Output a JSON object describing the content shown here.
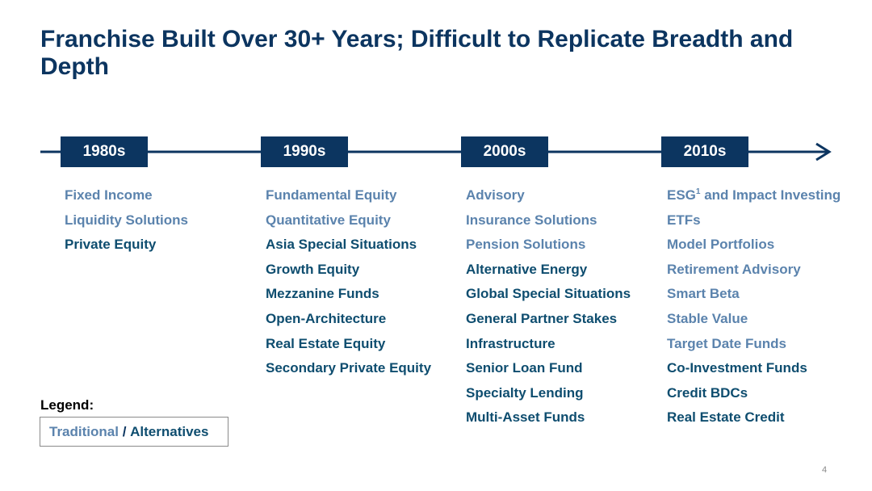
{
  "title": "Franchise Built Over 30+ Years; Difficult to Replicate Breadth and Depth",
  "colors": {
    "primary": "#0c3560",
    "traditional": "#5b83ad",
    "alternatives": "#0e4d6f",
    "legend_border": "#8a8a8a"
  },
  "timeline": {
    "decades": [
      {
        "label": "1980s",
        "items": [
          {
            "text": "Fixed Income",
            "category": "traditional"
          },
          {
            "text": "Liquidity Solutions",
            "category": "traditional"
          },
          {
            "text": "Private Equity",
            "category": "alternatives"
          }
        ]
      },
      {
        "label": "1990s",
        "items": [
          {
            "text": "Fundamental Equity",
            "category": "traditional"
          },
          {
            "text": "Quantitative Equity",
            "category": "traditional"
          },
          {
            "text": "Asia Special Situations",
            "category": "alternatives"
          },
          {
            "text": "Growth Equity",
            "category": "alternatives"
          },
          {
            "text": "Mezzanine Funds",
            "category": "alternatives"
          },
          {
            "text": "Open-Architecture",
            "category": "alternatives"
          },
          {
            "text": "Real Estate Equity",
            "category": "alternatives"
          },
          {
            "text": "Secondary Private Equity",
            "category": "alternatives"
          }
        ]
      },
      {
        "label": "2000s",
        "items": [
          {
            "text": "Advisory",
            "category": "traditional"
          },
          {
            "text": "Insurance Solutions",
            "category": "traditional"
          },
          {
            "text": "Pension Solutions",
            "category": "traditional"
          },
          {
            "text": "Alternative Energy",
            "category": "alternatives"
          },
          {
            "text": "Global Special Situations",
            "category": "alternatives"
          },
          {
            "text": "General Partner Stakes",
            "category": "alternatives"
          },
          {
            "text": "Infrastructure",
            "category": "alternatives"
          },
          {
            "text": "Senior Loan Fund",
            "category": "alternatives"
          },
          {
            "text": "Specialty Lending",
            "category": "alternatives"
          },
          {
            "text": "Multi-Asset Funds",
            "category": "alternatives"
          }
        ]
      },
      {
        "label": "2010s",
        "items": [
          {
            "text": "ESG",
            "sup": "1",
            "text_after": " and Impact Investing",
            "category": "traditional"
          },
          {
            "text": "ETFs",
            "category": "traditional"
          },
          {
            "text": "Model Portfolios",
            "category": "traditional"
          },
          {
            "text": "Retirement Advisory",
            "category": "traditional"
          },
          {
            "text": "Smart Beta",
            "category": "traditional"
          },
          {
            "text": "Stable Value",
            "category": "traditional"
          },
          {
            "text": "Target Date Funds",
            "category": "traditional"
          },
          {
            "text": "Co-Investment Funds",
            "category": "alternatives"
          },
          {
            "text": "Credit BDCs",
            "category": "alternatives"
          },
          {
            "text": "Real Estate Credit",
            "category": "alternatives"
          }
        ]
      }
    ]
  },
  "legend": {
    "label": "Legend:",
    "traditional": "Traditional",
    "separator": " / ",
    "alternatives": "Alternatives"
  },
  "page_number": "4"
}
